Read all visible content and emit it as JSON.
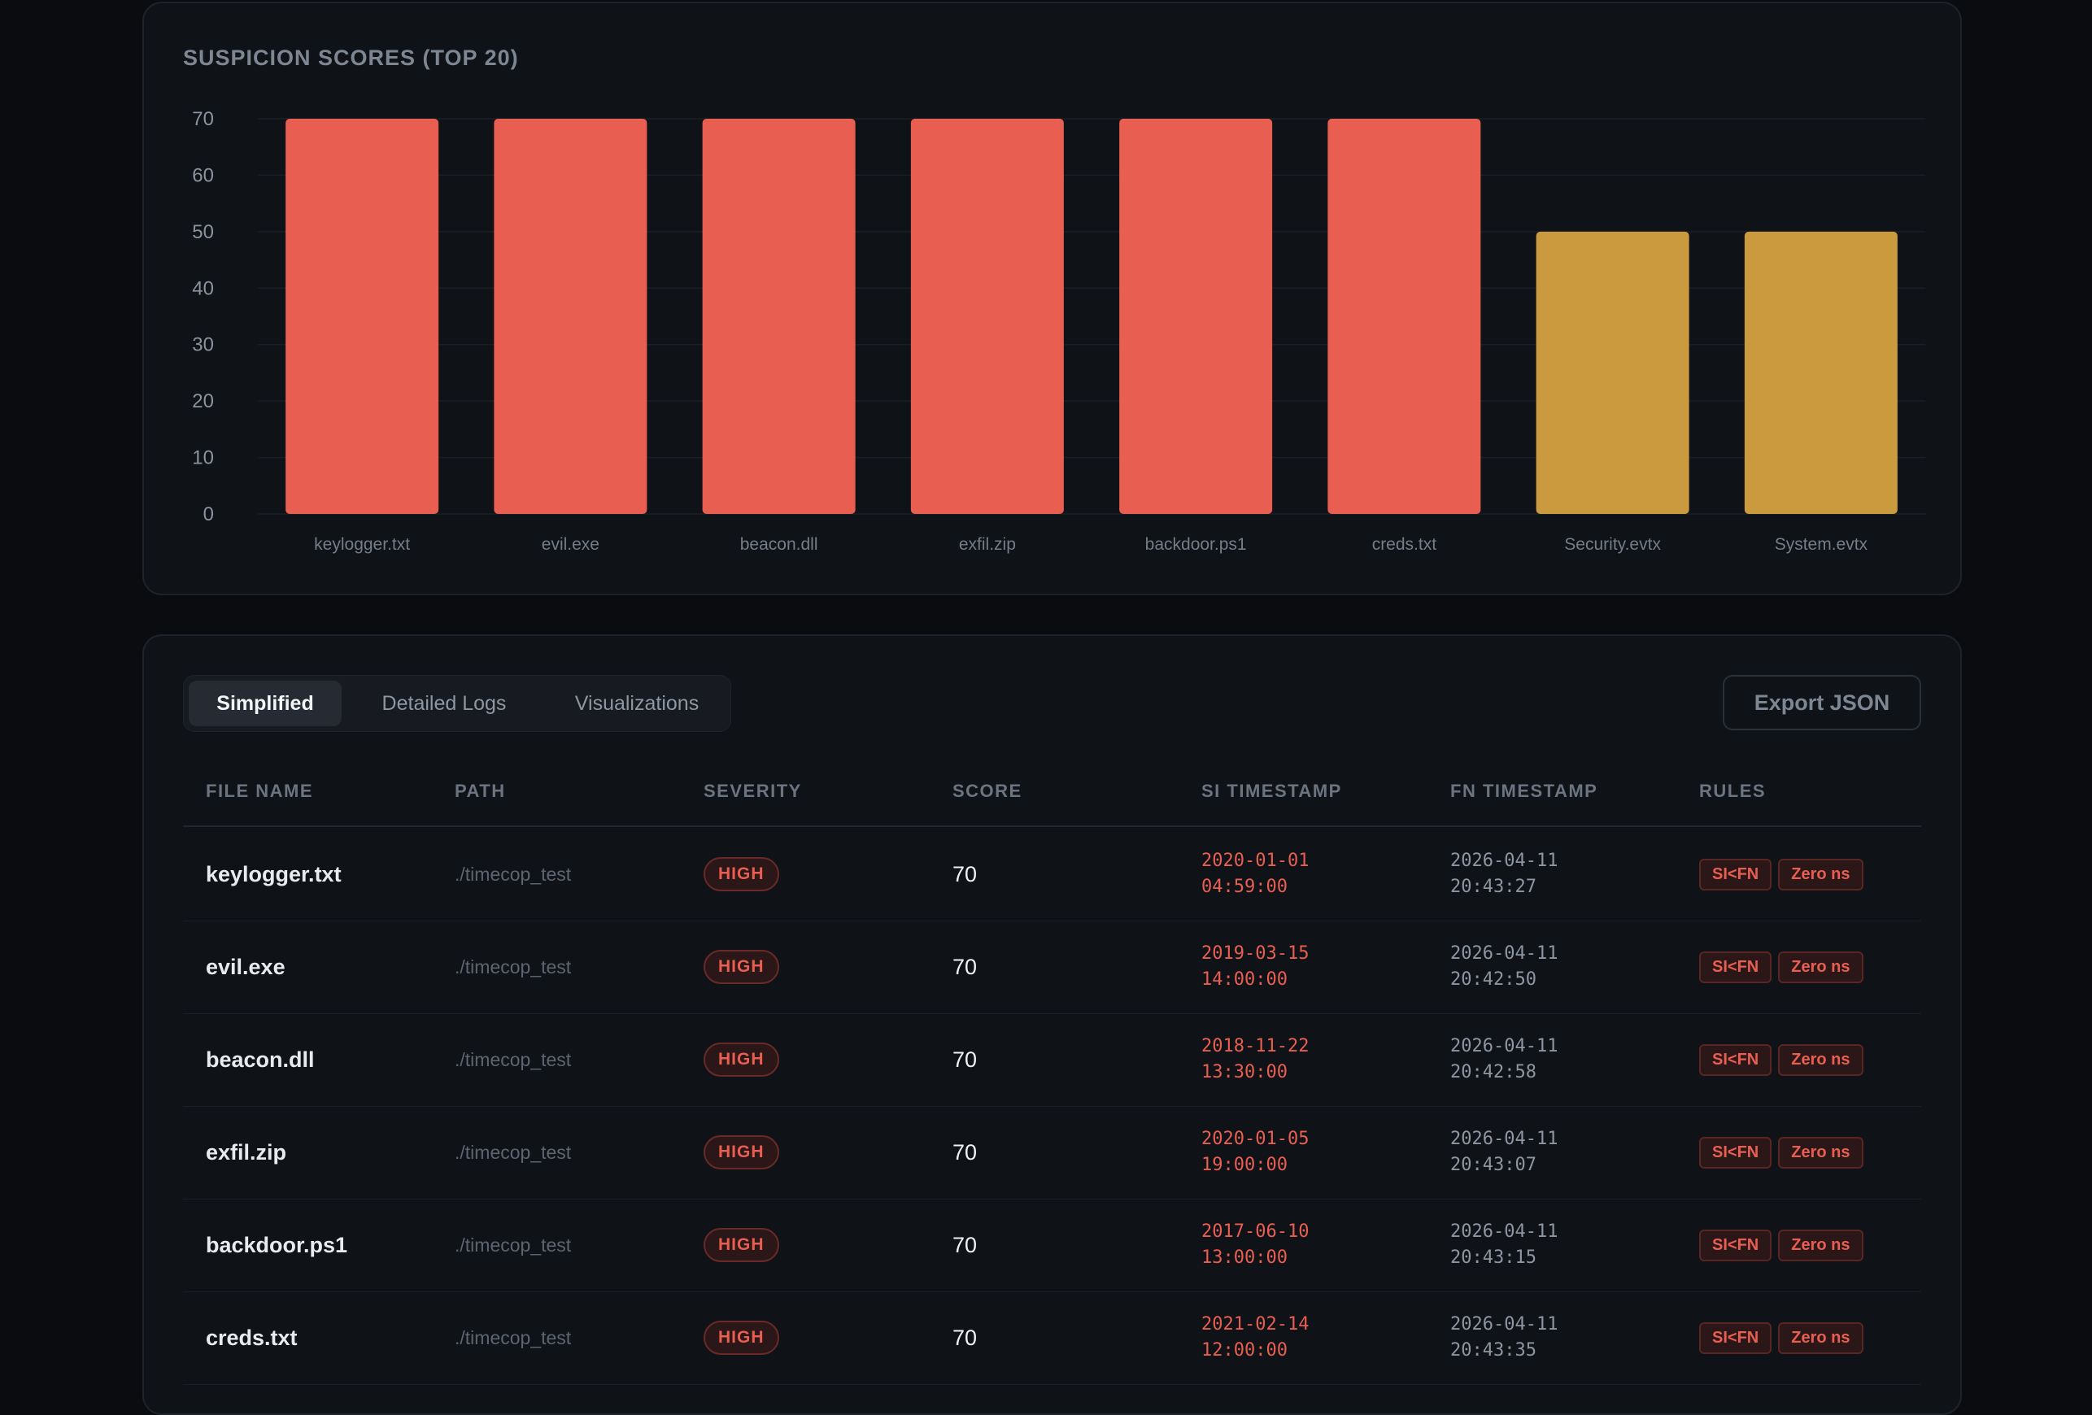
{
  "chart": {
    "title": "SUSPICION SCORES (TOP 20)"
  },
  "chart_data": {
    "type": "bar",
    "title": "SUSPICION SCORES (TOP 20)",
    "categories": [
      "keylogger.txt",
      "evil.exe",
      "beacon.dll",
      "exfil.zip",
      "backdoor.ps1",
      "creds.txt",
      "Security.evtx",
      "System.evtx"
    ],
    "values": [
      70,
      70,
      70,
      70,
      70,
      70,
      50,
      50
    ],
    "bar_colors": [
      "#e85f52",
      "#e85f52",
      "#e85f52",
      "#e85f52",
      "#e85f52",
      "#e85f52",
      "#cc9a3e",
      "#cc9a3e"
    ],
    "yticks": [
      0,
      10,
      20,
      30,
      40,
      50,
      60,
      70
    ],
    "ylim": [
      0,
      70
    ],
    "xlabel": "",
    "ylabel": "",
    "grid": true
  },
  "tabs": [
    {
      "label": "Simplified",
      "active": true
    },
    {
      "label": "Detailed Logs",
      "active": false
    },
    {
      "label": "Visualizations",
      "active": false
    }
  ],
  "export_label": "Export JSON",
  "table": {
    "headers": [
      "FILE NAME",
      "PATH",
      "SEVERITY",
      "SCORE",
      "SI TIMESTAMP",
      "FN TIMESTAMP",
      "RULES"
    ],
    "rows": [
      {
        "name": "keylogger.txt",
        "path": "./timecop_test",
        "severity": "HIGH",
        "score": "70",
        "si": "2020-01-01\n04:59:00",
        "fn": "2026-04-11\n20:43:27",
        "rules": [
          "SI<FN",
          "Zero ns"
        ]
      },
      {
        "name": "evil.exe",
        "path": "./timecop_test",
        "severity": "HIGH",
        "score": "70",
        "si": "2019-03-15\n14:00:00",
        "fn": "2026-04-11\n20:42:50",
        "rules": [
          "SI<FN",
          "Zero ns"
        ]
      },
      {
        "name": "beacon.dll",
        "path": "./timecop_test",
        "severity": "HIGH",
        "score": "70",
        "si": "2018-11-22\n13:30:00",
        "fn": "2026-04-11\n20:42:58",
        "rules": [
          "SI<FN",
          "Zero ns"
        ]
      },
      {
        "name": "exfil.zip",
        "path": "./timecop_test",
        "severity": "HIGH",
        "score": "70",
        "si": "2020-01-05\n19:00:00",
        "fn": "2026-04-11\n20:43:07",
        "rules": [
          "SI<FN",
          "Zero ns"
        ]
      },
      {
        "name": "backdoor.ps1",
        "path": "./timecop_test",
        "severity": "HIGH",
        "score": "70",
        "si": "2017-06-10\n13:00:00",
        "fn": "2026-04-11\n20:43:15",
        "rules": [
          "SI<FN",
          "Zero ns"
        ]
      },
      {
        "name": "creds.txt",
        "path": "./timecop_test",
        "severity": "HIGH",
        "score": "70",
        "si": "2021-02-14\n12:00:00",
        "fn": "2026-04-11\n20:43:35",
        "rules": [
          "SI<FN",
          "Zero ns"
        ]
      }
    ]
  }
}
